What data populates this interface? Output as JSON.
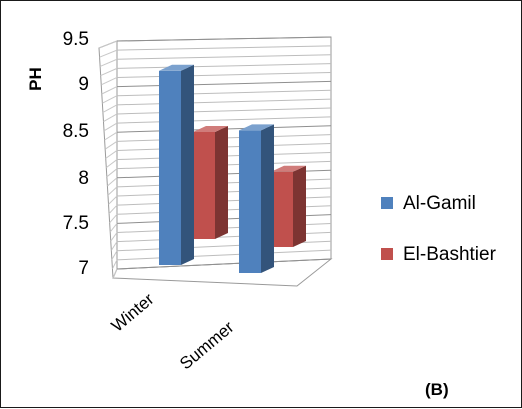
{
  "chart_data": {
    "type": "bar",
    "categories": [
      "Winter",
      "Summer"
    ],
    "series": [
      {
        "name": "Al-Gamil",
        "values": [
          9.2,
          8.85
        ],
        "color": "#4F81BD"
      },
      {
        "name": "El-Bashtier",
        "values": [
          8.2,
          7.95
        ],
        "color": "#C0504D"
      }
    ],
    "ylabel": "PH",
    "ylim": [
      7,
      9.5
    ],
    "yticks": [
      7,
      7.5,
      8,
      8.5,
      9,
      9.5
    ],
    "ytick_labels": [
      "7",
      "7.5",
      "8",
      "8.5",
      "9",
      "9.5"
    ],
    "grid": true,
    "legend": "right",
    "style": "3d-column",
    "panel_label": "(B)"
  }
}
